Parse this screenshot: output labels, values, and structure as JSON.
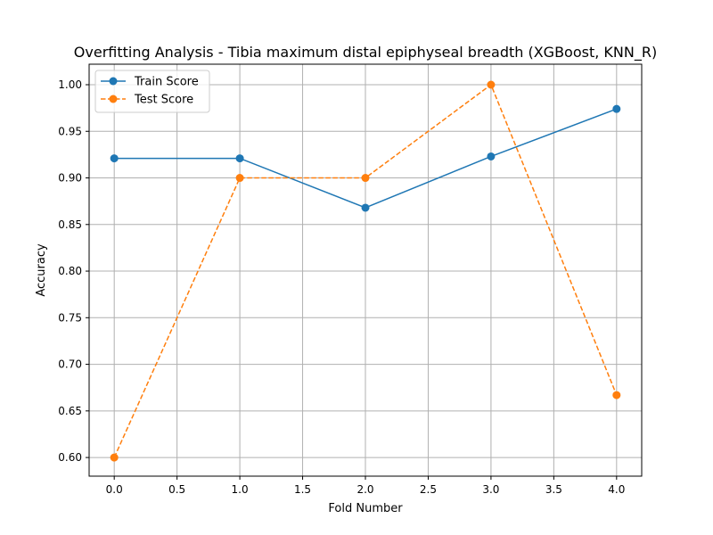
{
  "chart_data": {
    "type": "line",
    "title": "Overfitting Analysis - Tibia maximum distal epiphyseal breadth (XGBoost, KNN_R)",
    "xlabel": "Fold Number",
    "ylabel": "Accuracy",
    "x": [
      0,
      1,
      2,
      3,
      4
    ],
    "xlim": [
      -0.2,
      4.2
    ],
    "ylim": [
      0.58,
      1.022
    ],
    "xticks": [
      0.0,
      0.5,
      1.0,
      1.5,
      2.0,
      2.5,
      3.0,
      3.5,
      4.0
    ],
    "xtick_labels": [
      "0.0",
      "0.5",
      "1.0",
      "1.5",
      "2.0",
      "2.5",
      "3.0",
      "3.5",
      "4.0"
    ],
    "yticks": [
      0.6,
      0.65,
      0.7,
      0.75,
      0.8,
      0.85,
      0.9,
      0.95,
      1.0
    ],
    "ytick_labels": [
      "0.60",
      "0.65",
      "0.70",
      "0.75",
      "0.80",
      "0.85",
      "0.90",
      "0.95",
      "1.00"
    ],
    "grid": true,
    "legend_position": "top-left",
    "series": [
      {
        "name": "Train Score",
        "values": [
          0.921,
          0.921,
          0.868,
          0.923,
          0.974
        ],
        "color": "#1f77b4",
        "dashed": false
      },
      {
        "name": "Test Score",
        "values": [
          0.6,
          0.9,
          0.9,
          1.0,
          0.667
        ],
        "color": "#ff7f0e",
        "dashed": true
      }
    ]
  }
}
